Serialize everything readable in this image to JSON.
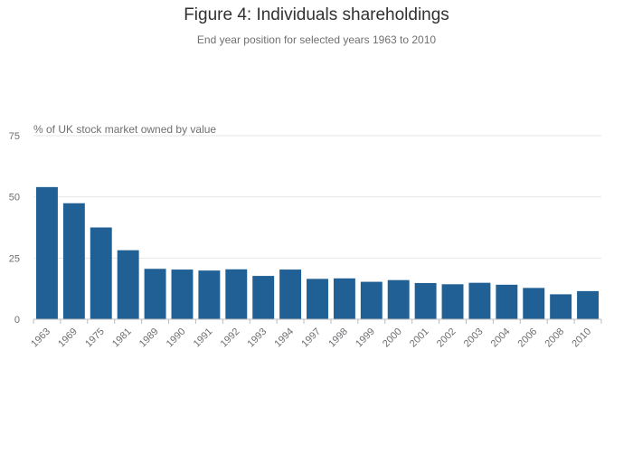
{
  "chart_data": {
    "type": "bar",
    "title": "Figure 4: Individuals shareholdings",
    "subtitle": "End year position for selected years 1963 to 2010",
    "ylabel": "% of UK stock market owned by value",
    "xlabel": "",
    "ylim": [
      0,
      75
    ],
    "yticks": [
      0,
      25,
      50,
      75
    ],
    "grid": true,
    "color": "#206095",
    "categories": [
      "1963",
      "1969",
      "1975",
      "1981",
      "1989",
      "1990",
      "1991",
      "1992",
      "1993",
      "1994",
      "1997",
      "1998",
      "1999",
      "2000",
      "2001",
      "2002",
      "2003",
      "2004",
      "2006",
      "2008",
      "2010"
    ],
    "values": [
      54,
      47.4,
      37.5,
      28.2,
      20.6,
      20.3,
      19.9,
      20.4,
      17.7,
      20.3,
      16.5,
      16.7,
      15.3,
      16.0,
      14.8,
      14.3,
      14.9,
      14.1,
      12.8,
      10.2,
      11.5
    ]
  }
}
